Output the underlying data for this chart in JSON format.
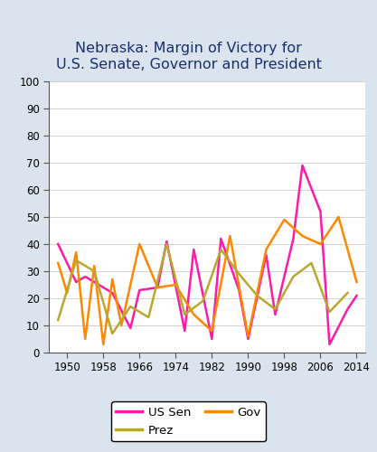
{
  "title": "Nebraska: Margin of Victory for\nU.S. Senate, Governor and President",
  "title_fontsize": 11.5,
  "background_color": "#d9e4ee",
  "plot_bg_color": "#ffffff",
  "ylim": [
    0,
    100
  ],
  "yticks": [
    0,
    10,
    20,
    30,
    40,
    50,
    60,
    70,
    80,
    90,
    100
  ],
  "xtick_labels": [
    "1950",
    "1958",
    "1966",
    "1974",
    "1982",
    "1990",
    "1998",
    "2006",
    "2014"
  ],
  "xtick_years": [
    1950,
    1958,
    1966,
    1974,
    1982,
    1990,
    1998,
    2006,
    2014
  ],
  "xlim": [
    1946,
    2016
  ],
  "us_sen": {
    "years": [
      1948,
      1952,
      1954,
      1958,
      1960,
      1964,
      1966,
      1970,
      1972,
      1976,
      1978,
      1982,
      1984,
      1988,
      1990,
      1994,
      1996,
      2000,
      2002,
      2006,
      2008,
      2012,
      2014
    ],
    "values": [
      40,
      26,
      28,
      24,
      22,
      9,
      23,
      24,
      41,
      8,
      38,
      5,
      42,
      23,
      5,
      36,
      14,
      42,
      69,
      52,
      3,
      16,
      21
    ]
  },
  "gov": {
    "years": [
      1948,
      1950,
      1952,
      1954,
      1956,
      1958,
      1960,
      1962,
      1966,
      1970,
      1974,
      1978,
      1982,
      1986,
      1990,
      1994,
      1998,
      2002,
      2006,
      2010,
      2014
    ],
    "values": [
      33,
      22,
      37,
      5,
      32,
      3,
      27,
      10,
      40,
      24,
      25,
      14,
      8,
      43,
      6,
      38,
      49,
      43,
      40,
      50,
      26
    ]
  },
  "prez": {
    "years": [
      1948,
      1952,
      1956,
      1960,
      1964,
      1968,
      1972,
      1976,
      1980,
      1984,
      1988,
      1992,
      1996,
      2000,
      2004,
      2008,
      2012
    ],
    "values": [
      12,
      34,
      30,
      7,
      17,
      13,
      40,
      14,
      19,
      38,
      29,
      21,
      16,
      28,
      33,
      15,
      22
    ]
  },
  "us_sen_color": "#ff1aaa",
  "gov_color": "#ff8800",
  "prez_color": "#b8a832",
  "linewidth": 1.8,
  "legend_fontsize": 9.5,
  "tick_fontsize": 8.5
}
